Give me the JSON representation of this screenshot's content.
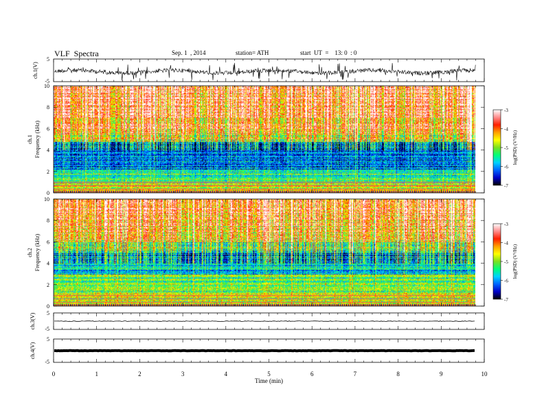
{
  "header": {
    "title": "VLF  Spectra",
    "date": "Sep. 1  , 2014",
    "station": "station= ATH",
    "start": "start  UT  =    13: 0  : 0"
  },
  "chart_data": [
    {
      "type": "line",
      "panel": "ch1-waveform",
      "ylabel": "ch.1(V)",
      "ylim": [
        -5,
        5
      ],
      "yticks": [
        "5",
        "-5"
      ],
      "xlim": [
        0,
        10
      ],
      "line_color": "#000000"
    },
    {
      "type": "heatmap",
      "panel": "ch1-spectrogram",
      "ylabel": "ch.1\nFrequency  (kHz)",
      "ylim": [
        0,
        10
      ],
      "yticks": [
        "0",
        "2",
        "4",
        "6",
        "8",
        "10"
      ],
      "xlim": [
        0,
        9.8
      ],
      "colorbar": {
        "label": "log(PSD) (V²/Hz)",
        "range": [
          -7,
          -3
        ],
        "ticks": [
          "-3",
          "-4",
          "-5",
          "-6",
          "-7"
        ],
        "colormap": [
          "#000000",
          "#0000c8",
          "#0064ff",
          "#00d2ff",
          "#00ff78",
          "#7ae020",
          "#ffff00",
          "#ffa000",
          "#ff1e00",
          "#ff8c8c",
          "#ffffff"
        ]
      }
    },
    {
      "type": "heatmap",
      "panel": "ch2-spectrogram",
      "ylabel": "ch.2\nFrequency  (kHz)",
      "ylim": [
        0,
        10
      ],
      "yticks": [
        "0",
        "2",
        "4",
        "6",
        "8",
        "10"
      ],
      "xlim": [
        0,
        9.8
      ],
      "colorbar": {
        "label": "log(PSD) (V²/Hz)",
        "range": [
          -7,
          -3
        ],
        "ticks": [
          "-3",
          "-4",
          "-5",
          "-6",
          "-7"
        ]
      }
    },
    {
      "type": "line",
      "panel": "ch3-waveform",
      "ylabel": "ch.3(V)",
      "ylim": [
        -5,
        5
      ],
      "yticks": [
        "5",
        "-5"
      ],
      "level": 0,
      "line_color": "#000000"
    },
    {
      "type": "line",
      "panel": "ch4-waveform",
      "ylabel": "ch.4(V)",
      "ylim": [
        -5,
        5
      ],
      "yticks": [
        "5",
        "-5"
      ],
      "level": 0,
      "line_color": "#000000"
    }
  ],
  "x_axis": {
    "label": "Time  (min)",
    "range": [
      0,
      10
    ],
    "ticks": [
      "0",
      "1",
      "2",
      "3",
      "4",
      "5",
      "6",
      "7",
      "8",
      "9",
      "10"
    ]
  }
}
